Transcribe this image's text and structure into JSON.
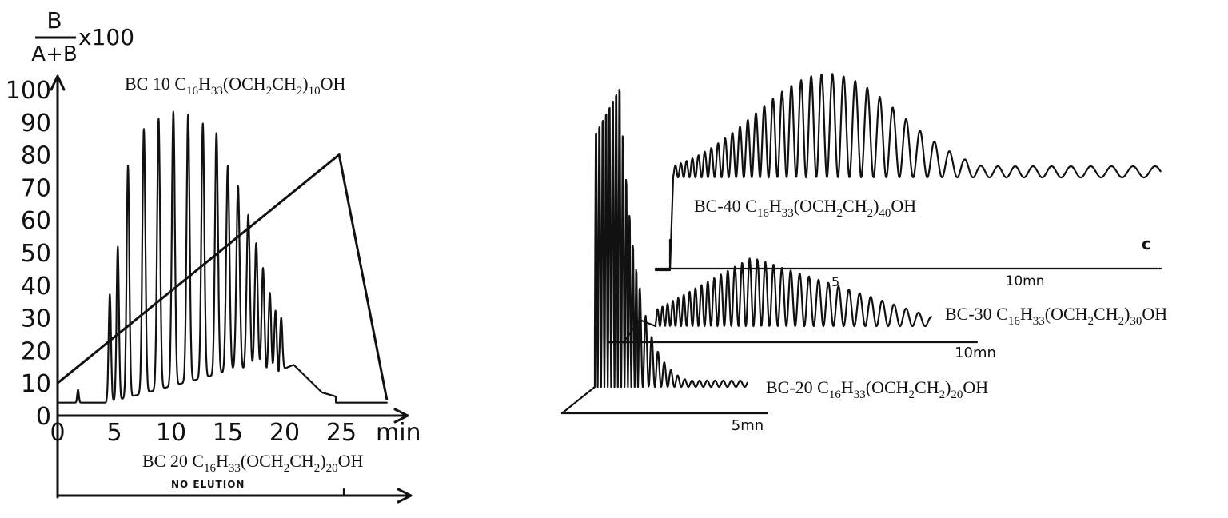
{
  "chart_data": [
    {
      "type": "line",
      "panel": "left",
      "ylabel": {
        "numerator": "B",
        "denominator": "A+B",
        "suffix": "x100"
      },
      "xlabel": "min",
      "xlim": [
        0,
        30
      ],
      "ylim": [
        0,
        100
      ],
      "x_ticks": [
        "0",
        "5",
        "10",
        "15",
        "20",
        "25"
      ],
      "y_ticks": [
        "0",
        "10",
        "20",
        "30",
        "40",
        "50",
        "60",
        "70",
        "80",
        "90",
        "100"
      ],
      "trace_label": "BC 10  C16H33(OCH2CH2)10OH",
      "trace_label_parts": [
        "BC 10  C",
        "16",
        "H",
        "33",
        "(OCH",
        "2",
        "CH",
        "2",
        ")",
        "10",
        "OH"
      ],
      "gradient": {
        "name": "% B",
        "points": [
          [
            0,
            10
          ],
          [
            24.8,
            80
          ],
          [
            29,
            5
          ]
        ]
      },
      "baseline": 4,
      "peaks": [
        {
          "x": 1.8,
          "height": 8,
          "width": 0.15
        },
        {
          "x": 4.6,
          "height": 37,
          "width": 0.22
        },
        {
          "x": 5.3,
          "height": 51,
          "width": 0.22
        },
        {
          "x": 6.2,
          "height": 75,
          "width": 0.25
        },
        {
          "x": 7.6,
          "height": 85,
          "width": 0.28
        },
        {
          "x": 8.9,
          "height": 87,
          "width": 0.28
        },
        {
          "x": 10.2,
          "height": 88,
          "width": 0.28
        },
        {
          "x": 11.5,
          "height": 86,
          "width": 0.28
        },
        {
          "x": 12.8,
          "height": 82,
          "width": 0.28
        },
        {
          "x": 14.0,
          "height": 78,
          "width": 0.28
        },
        {
          "x": 15.0,
          "height": 67,
          "width": 0.3
        },
        {
          "x": 15.9,
          "height": 60,
          "width": 0.3
        },
        {
          "x": 16.8,
          "height": 52,
          "width": 0.3
        },
        {
          "x": 17.5,
          "height": 44,
          "width": 0.28
        },
        {
          "x": 18.1,
          "height": 37,
          "width": 0.26
        },
        {
          "x": 18.7,
          "height": 30,
          "width": 0.25
        },
        {
          "x": 19.2,
          "height": 25,
          "width": 0.24
        },
        {
          "x": 19.7,
          "height": 20,
          "width": 0.22
        }
      ],
      "second_trace": {
        "label_parts": [
          "BC 20  C",
          "16",
          "H",
          "33",
          "(OCH",
          "2",
          "CH",
          "2",
          ")",
          "20",
          "OH"
        ],
        "note": "NO ELUTION"
      }
    },
    {
      "type": "line",
      "panel": "right",
      "traces": [
        {
          "name": "BC-20",
          "label_parts": [
            "BC-20 C",
            "16",
            "H",
            "33",
            "(OCH",
            "2",
            "CH",
            "2",
            ")",
            "20",
            "OH"
          ],
          "time_label": "5mn"
        },
        {
          "name": "BC-30",
          "label_parts": [
            "BC-30 C",
            "16",
            "H",
            "33",
            "(OCH",
            "2",
            "CH",
            "2",
            ")",
            "30",
            "OH"
          ],
          "time_label": "10mn"
        },
        {
          "name": "BC-40",
          "label_parts": [
            "BC-40 C",
            "16",
            "H",
            "33",
            "(OCH",
            "2",
            "CH",
            "2",
            ")",
            "40",
            "OH"
          ],
          "time_labels": [
            "5",
            "10mn"
          ],
          "panel_letter": "c"
        }
      ]
    }
  ]
}
